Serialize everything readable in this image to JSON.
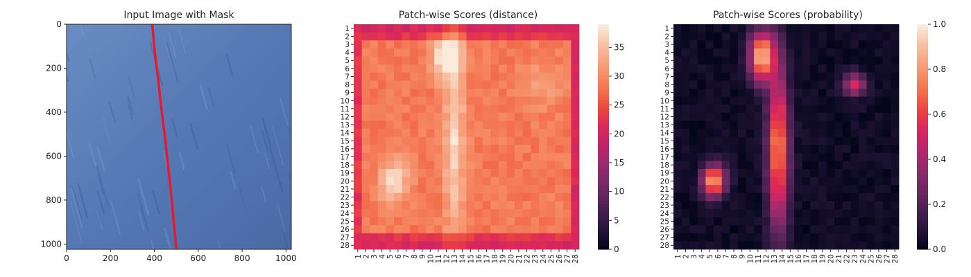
{
  "chart_data": [
    {
      "type": "image",
      "title": "Input Image with Mask",
      "xticks": [
        0,
        200,
        400,
        600,
        800,
        1000
      ],
      "yticks": [
        0,
        200,
        400,
        600,
        800,
        1000
      ],
      "xlim": [
        0,
        1024
      ],
      "ylim": [
        1024,
        0
      ],
      "image_color": "#5578b4",
      "mask_color": "#e8192c",
      "mask_line": {
        "x": [
          390,
          402,
          418,
          432,
          448,
          462,
          476,
          488,
          500
        ],
        "y": [
          0,
          128,
          256,
          384,
          512,
          640,
          768,
          896,
          1024
        ]
      }
    },
    {
      "type": "heatmap",
      "title": "Patch-wise Scores (distance)",
      "rows": [
        "1",
        "2",
        "3",
        "4",
        "5",
        "6",
        "7",
        "8",
        "9",
        "10",
        "11",
        "12",
        "13",
        "14",
        "15",
        "16",
        "17",
        "18",
        "19",
        "20",
        "21",
        "22",
        "23",
        "24",
        "25",
        "26",
        "27",
        "28"
      ],
      "cols": [
        "1",
        "2",
        "3",
        "4",
        "5",
        "6",
        "7",
        "8",
        "9",
        "10",
        "11",
        "12",
        "13",
        "14",
        "15",
        "16",
        "17",
        "18",
        "19",
        "20",
        "21",
        "22",
        "23",
        "24",
        "25",
        "26",
        "27",
        "28"
      ],
      "colorbar_ticks": [
        0,
        5,
        10,
        15,
        20,
        25,
        30,
        35
      ],
      "vmin": 0,
      "vmax": 39,
      "colormap": "rocket"
    },
    {
      "type": "heatmap",
      "title": "Patch-wise Scores (probability)",
      "rows": [
        "1",
        "2",
        "3",
        "4",
        "5",
        "6",
        "7",
        "8",
        "9",
        "10",
        "11",
        "12",
        "13",
        "14",
        "15",
        "16",
        "17",
        "18",
        "19",
        "20",
        "21",
        "22",
        "23",
        "24",
        "25",
        "26",
        "27",
        "28"
      ],
      "cols": [
        "1",
        "2",
        "3",
        "4",
        "5",
        "6",
        "7",
        "8",
        "9",
        "10",
        "11",
        "12",
        "13",
        "14",
        "15",
        "16",
        "17",
        "18",
        "19",
        "20",
        "21",
        "22",
        "23",
        "24",
        "25",
        "26",
        "27",
        "28"
      ],
      "colorbar_ticks": [
        "0.0",
        "0.2",
        "0.4",
        "0.6",
        "0.8",
        "1.0"
      ],
      "vmin": 0,
      "vmax": 1,
      "colormap": "rocket"
    }
  ]
}
